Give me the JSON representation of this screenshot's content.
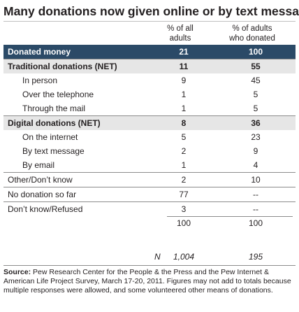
{
  "chart_data": {
    "type": "table",
    "title": "Many donations now given online or by text message",
    "columns": [
      "% of all adults",
      "% of adults who donated"
    ],
    "rows": [
      {
        "label": "Donated money",
        "values": [
          "21",
          "100"
        ],
        "style": "donated"
      },
      {
        "label": "Traditional donations (NET)",
        "values": [
          "11",
          "55"
        ],
        "style": "net"
      },
      {
        "label": "In person",
        "values": [
          "9",
          "45"
        ],
        "style": "sub"
      },
      {
        "label": "Over the telephone",
        "values": [
          "1",
          "5"
        ],
        "style": "sub"
      },
      {
        "label": "Through the mail",
        "values": [
          "1",
          "5"
        ],
        "style": "sub"
      },
      {
        "label": "Digital donations (NET)",
        "values": [
          "8",
          "36"
        ],
        "style": "net"
      },
      {
        "label": "On the internet",
        "values": [
          "5",
          "23"
        ],
        "style": "sub"
      },
      {
        "label": "By text message",
        "values": [
          "2",
          "9"
        ],
        "style": "sub"
      },
      {
        "label": "By email",
        "values": [
          "1",
          "4"
        ],
        "style": "sub"
      },
      {
        "label": "Other/Don’t know",
        "values": [
          "2",
          "10"
        ],
        "style": "plain"
      },
      {
        "label": "No donation so far",
        "values": [
          "77",
          "--"
        ],
        "style": "plain"
      },
      {
        "label": "Don’t know/Refused",
        "values": [
          "3",
          "--"
        ],
        "style": "plain"
      }
    ],
    "totals": [
      "100",
      "100"
    ],
    "n_label": "N",
    "n_values": [
      "1,004",
      "195"
    ]
  },
  "colhead": {
    "c1": [
      "% of all",
      "adults"
    ],
    "c2": [
      "% of adults",
      "who donated"
    ]
  },
  "source": {
    "label": "Source:",
    "text": "Pew Research Center for the People & the Press and the Pew Internet & American Life Project Survey, March 17-20, 2011. Figures may not add to totals because multiple responses were allowed, and some volunteered other means of donations."
  },
  "colors": {
    "donated_row": "#2b4a67",
    "net_row": "#e6e6e6"
  }
}
